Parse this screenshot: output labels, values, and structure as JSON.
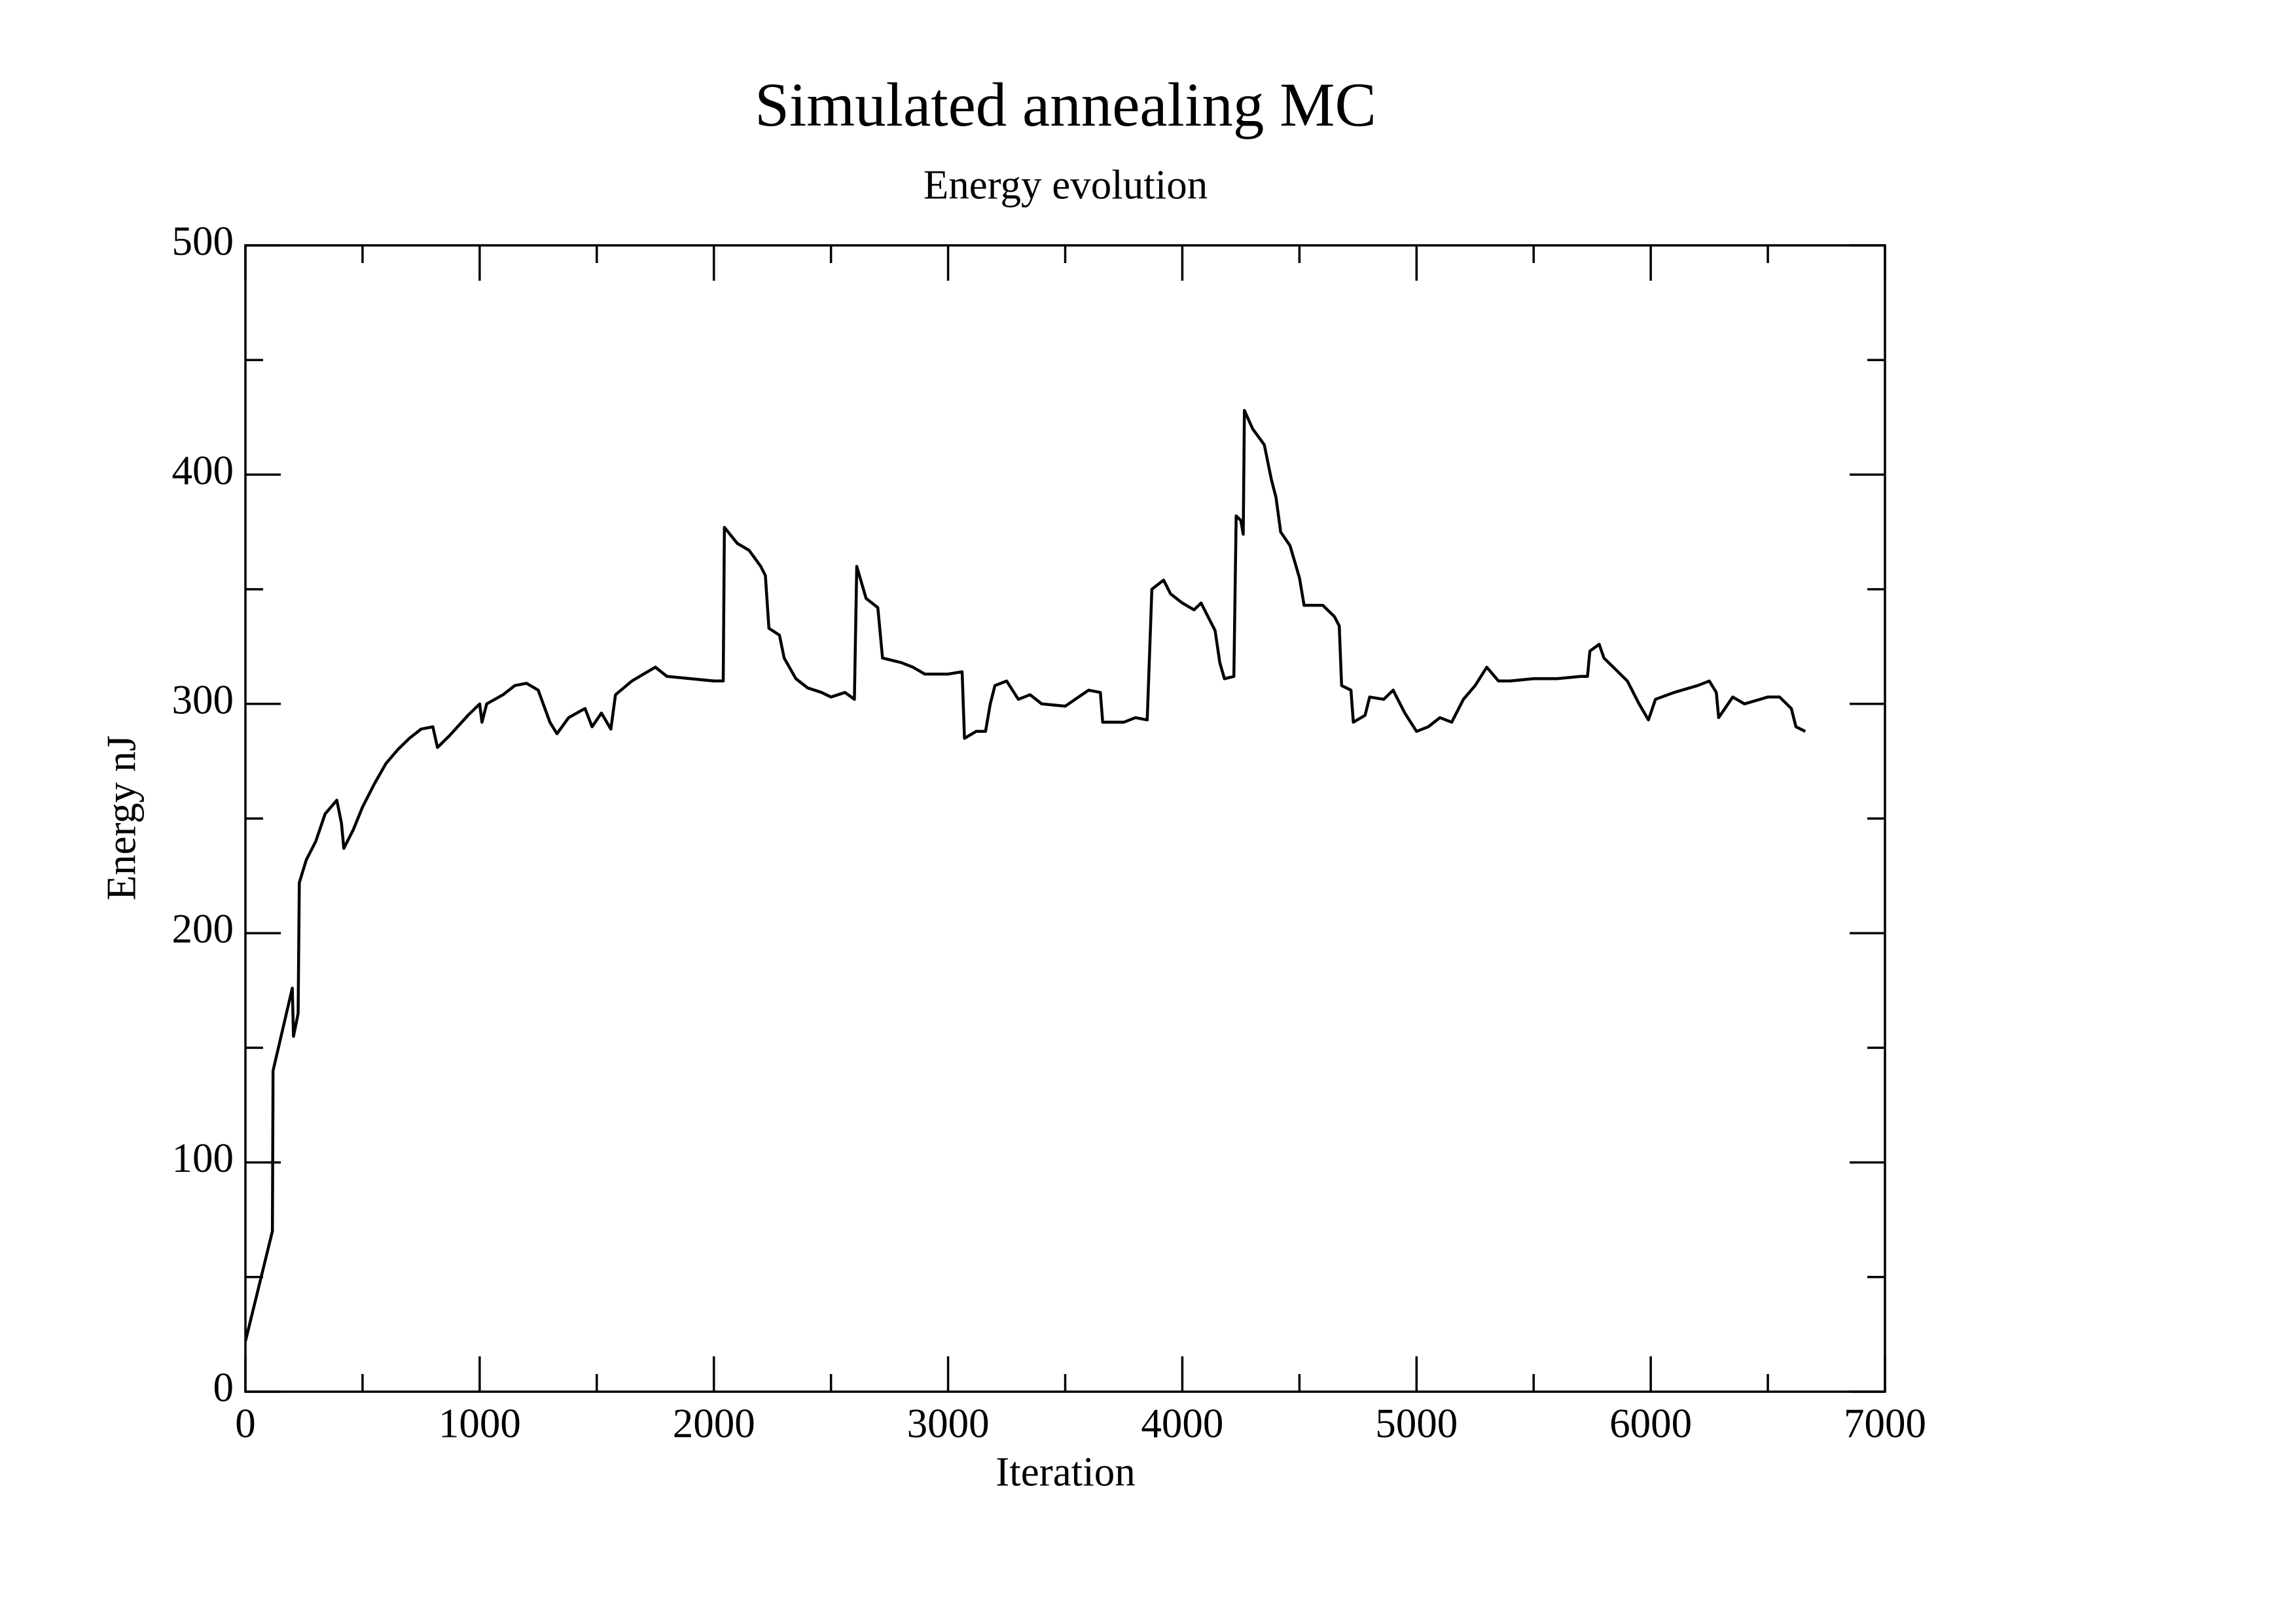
{
  "chart_data": {
    "type": "line",
    "title": "Simulated annealing MC",
    "subtitle": "Energy evolution",
    "x_label": "Iteration",
    "y_label": "Energy nJ",
    "xlim": [
      0,
      7000
    ],
    "ylim": [
      0,
      500
    ],
    "xticks": [
      0,
      1000,
      2000,
      3000,
      4000,
      5000,
      6000,
      7000
    ],
    "yticks": [
      0,
      100,
      200,
      300,
      400,
      500
    ],
    "grid": false,
    "series": [
      {
        "name": "Energy",
        "color": "#000000",
        "x": [
          0,
          115,
          118,
          200,
          205,
          225,
          230,
          260,
          300,
          340,
          390,
          410,
          420,
          460,
          500,
          550,
          600,
          650,
          700,
          750,
          800,
          820,
          870,
          950,
          1000,
          1010,
          1030,
          1100,
          1150,
          1200,
          1250,
          1300,
          1330,
          1380,
          1450,
          1480,
          1520,
          1560,
          1580,
          1650,
          1700,
          1750,
          1800,
          1900,
          2000,
          2040,
          2045,
          2100,
          2150,
          2200,
          2220,
          2235,
          2280,
          2300,
          2350,
          2400,
          2460,
          2500,
          2560,
          2600,
          2610,
          2650,
          2700,
          2720,
          2800,
          2850,
          2900,
          3000,
          3060,
          3070,
          3120,
          3160,
          3180,
          3200,
          3250,
          3300,
          3350,
          3400,
          3500,
          3600,
          3650,
          3660,
          3750,
          3800,
          3850,
          3870,
          3920,
          3950,
          4000,
          4050,
          4080,
          4100,
          4140,
          4160,
          4180,
          4220,
          4230,
          4250,
          4260,
          4265,
          4300,
          4350,
          4380,
          4400,
          4420,
          4460,
          4500,
          4520,
          4600,
          4650,
          4670,
          4680,
          4720,
          4730,
          4780,
          4800,
          4860,
          4900,
          4950,
          5000,
          5050,
          5100,
          5150,
          5200,
          5250,
          5300,
          5350,
          5400,
          5500,
          5600,
          5700,
          5730,
          5740,
          5780,
          5800,
          5850,
          5900,
          5950,
          5990,
          6020,
          6100,
          6200,
          6250,
          6280,
          6290,
          6350,
          6400,
          6500,
          6550,
          6600,
          6620,
          6660
        ],
        "values": [
          22,
          70,
          140,
          176,
          155,
          165,
          222,
          232,
          240,
          252,
          258,
          248,
          237,
          245,
          255,
          265,
          274,
          280,
          285,
          289,
          290,
          281,
          286,
          295,
          300,
          292,
          300,
          304,
          308,
          309,
          306,
          292,
          287,
          294,
          298,
          290,
          296,
          289,
          304,
          310,
          313,
          316,
          312,
          311,
          310,
          310,
          377,
          370,
          367,
          360,
          356,
          333,
          330,
          320,
          311,
          307,
          305,
          303,
          305,
          302,
          360,
          346,
          342,
          320,
          318,
          316,
          313,
          313,
          314,
          285,
          288,
          288,
          300,
          308,
          310,
          302,
          304,
          300,
          299,
          306,
          305,
          292,
          292,
          294,
          293,
          350,
          354,
          348,
          344,
          341,
          344,
          340,
          332,
          318,
          311,
          312,
          382,
          380,
          374,
          428,
          420,
          413,
          398,
          390,
          375,
          369,
          355,
          343,
          343,
          338,
          334,
          308,
          306,
          292,
          295,
          303,
          302,
          306,
          296,
          288,
          290,
          294,
          292,
          302,
          308,
          316,
          310,
          310,
          311,
          311,
          312,
          312,
          323,
          326,
          320,
          315,
          310,
          300,
          293,
          302,
          305,
          308,
          310,
          305,
          294,
          303,
          300,
          303,
          303,
          298,
          290,
          288
        ]
      }
    ]
  }
}
